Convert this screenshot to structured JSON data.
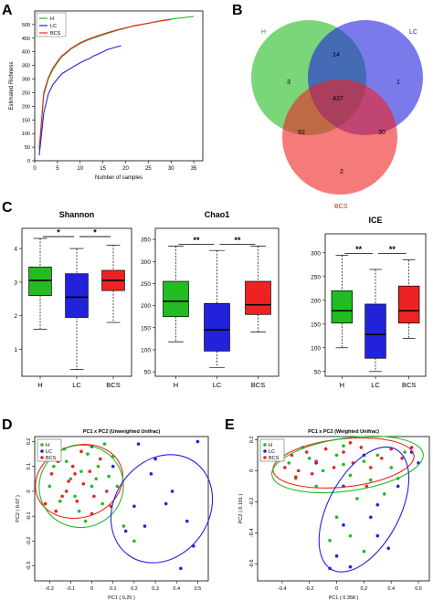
{
  "colors": {
    "H": "#22bb22",
    "LC": "#2222dd",
    "BCS": "#ee2222"
  },
  "panels": {
    "A": "A",
    "B": "B",
    "C": "C",
    "D": "D",
    "E": "E"
  },
  "chart_data": [
    {
      "panel": "A",
      "type": "line",
      "xlabel": "Number of samples",
      "ylabel": "Estimated Richness",
      "xlim": [
        0,
        37
      ],
      "ylim": [
        0,
        550
      ],
      "xticks": [
        0,
        5,
        10,
        15,
        20,
        25,
        30,
        35
      ],
      "yticks": [
        0,
        50,
        100,
        150,
        200,
        250,
        300,
        350,
        400,
        450,
        500
      ],
      "legend_position": "top-left",
      "series": [
        {
          "name": "H",
          "x": [
            1,
            2,
            3,
            4,
            5,
            6,
            8,
            10,
            12,
            15,
            18,
            20,
            22,
            25,
            28,
            30,
            33,
            35
          ],
          "y": [
            40,
            240,
            300,
            335,
            360,
            382,
            410,
            430,
            445,
            462,
            478,
            487,
            495,
            505,
            515,
            520,
            526,
            530
          ]
        },
        {
          "name": "LC",
          "x": [
            1,
            2,
            3,
            4,
            5,
            6,
            7,
            8,
            9,
            10,
            11,
            12,
            13,
            14,
            15,
            16,
            17,
            18,
            19
          ],
          "y": [
            20,
            175,
            245,
            280,
            300,
            320,
            330,
            340,
            350,
            360,
            368,
            375,
            385,
            392,
            400,
            408,
            413,
            418,
            422
          ]
        },
        {
          "name": "BCS",
          "x": [
            1,
            2,
            3,
            4,
            5,
            6,
            8,
            10,
            12,
            15,
            18,
            20,
            22,
            25,
            28,
            30
          ],
          "y": [
            45,
            250,
            305,
            340,
            365,
            385,
            413,
            433,
            448,
            465,
            480,
            488,
            496,
            505,
            514,
            518
          ]
        }
      ]
    },
    {
      "panel": "B",
      "type": "venn",
      "sets": [
        "H",
        "LC",
        "BCS"
      ],
      "regions": [
        {
          "sets": [
            "H"
          ],
          "value": 3
        },
        {
          "sets": [
            "LC"
          ],
          "value": 1
        },
        {
          "sets": [
            "BCS"
          ],
          "value": 2
        },
        {
          "sets": [
            "H",
            "LC"
          ],
          "value": 14
        },
        {
          "sets": [
            "H",
            "BCS"
          ],
          "value": 92
        },
        {
          "sets": [
            "LC",
            "BCS"
          ],
          "value": 30
        },
        {
          "sets": [
            "H",
            "LC",
            "BCS"
          ],
          "value": 437
        }
      ]
    },
    {
      "panel": "C",
      "type": "box",
      "title": "Shannon",
      "categories": [
        "H",
        "LC",
        "BCS"
      ],
      "ylim": [
        0.2,
        4.6
      ],
      "yticks": [
        1,
        2,
        3,
        4
      ],
      "boxes": [
        {
          "min": 1.6,
          "q1": 2.6,
          "median": 3.05,
          "q3": 3.45,
          "max": 4.3
        },
        {
          "min": 0.4,
          "q1": 1.95,
          "median": 2.55,
          "q3": 3.25,
          "max": 4.0
        },
        {
          "min": 1.8,
          "q1": 2.75,
          "median": 3.05,
          "q3": 3.35,
          "max": 4.1
        }
      ],
      "significance": [
        {
          "from": 0,
          "to": 1,
          "label": "*"
        },
        {
          "from": 1,
          "to": 2,
          "label": "*"
        }
      ]
    },
    {
      "panel": "C",
      "type": "box",
      "title": "Chao1",
      "categories": [
        "H",
        "LC",
        "BCS"
      ],
      "ylim": [
        40,
        375
      ],
      "yticks": [
        50,
        100,
        150,
        200,
        250,
        300,
        350
      ],
      "boxes": [
        {
          "min": 118,
          "q1": 175,
          "median": 210,
          "q3": 255,
          "max": 335
        },
        {
          "min": 60,
          "q1": 97,
          "median": 145,
          "q3": 205,
          "max": 325
        },
        {
          "min": 140,
          "q1": 180,
          "median": 202,
          "q3": 255,
          "max": 335
        }
      ],
      "significance": [
        {
          "from": 0,
          "to": 1,
          "label": "**"
        },
        {
          "from": 1,
          "to": 2,
          "label": "**"
        }
      ]
    },
    {
      "panel": "C",
      "type": "box",
      "title": "ICE",
      "categories": [
        "H",
        "LC",
        "BCS"
      ],
      "ylim": [
        40,
        340
      ],
      "yticks": [
        50,
        100,
        150,
        200,
        250,
        300
      ],
      "boxes": [
        {
          "min": 100,
          "q1": 152,
          "median": 178,
          "q3": 220,
          "max": 295
        },
        {
          "min": 50,
          "q1": 78,
          "median": 128,
          "q3": 192,
          "max": 265
        },
        {
          "min": 120,
          "q1": 152,
          "median": 178,
          "q3": 230,
          "max": 285
        }
      ],
      "significance": [
        {
          "from": 0,
          "to": 1,
          "label": "**"
        },
        {
          "from": 1,
          "to": 2,
          "label": "**"
        }
      ]
    },
    {
      "panel": "D",
      "type": "scatter",
      "title": "PC1 x PC2 (Unweighted Unifrac)",
      "xlabel": "PC1 ( 0.25 )",
      "ylabel": "PC2 ( 0.07 )",
      "xlim": [
        -0.27,
        0.55
      ],
      "ylim": [
        -0.36,
        0.22
      ],
      "xticks": [
        -0.2,
        -0.1,
        0.0,
        0.1,
        0.2,
        0.3,
        0.4,
        0.5
      ],
      "yticks": [
        -0.3,
        -0.2,
        -0.1,
        0.0,
        0.1,
        0.2
      ],
      "legend_position": "top-left",
      "series": [
        {
          "name": "H",
          "points": [
            [
              -0.18,
              0.1
            ],
            [
              -0.15,
              -0.04
            ],
            [
              -0.12,
              0.12
            ],
            [
              -0.1,
              0.05
            ],
            [
              -0.08,
              -0.02
            ],
            [
              -0.05,
              0.08
            ],
            [
              -0.02,
              0.15
            ],
            [
              0.0,
              0.02
            ],
            [
              0.03,
              0.1
            ],
            [
              0.05,
              -0.05
            ],
            [
              0.08,
              0.06
            ],
            [
              0.1,
              0.14
            ],
            [
              -0.2,
              0.02
            ],
            [
              -0.06,
              -0.08
            ],
            [
              0.12,
              0.02
            ],
            [
              0.15,
              -0.14
            ],
            [
              -0.13,
              0.17
            ],
            [
              0.06,
              0.19
            ],
            [
              0.2,
              -0.2
            ],
            [
              -0.03,
              -0.12
            ],
            [
              0.02,
              0.05
            ]
          ]
        },
        {
          "name": "LC",
          "points": [
            [
              0.22,
              0.19
            ],
            [
              0.28,
              0.07
            ],
            [
              0.38,
              0.0
            ],
            [
              0.45,
              -0.12
            ],
            [
              0.2,
              -0.06
            ],
            [
              0.25,
              -0.14
            ],
            [
              0.48,
              -0.22
            ],
            [
              0.42,
              -0.31
            ],
            [
              0.16,
              -0.16
            ],
            [
              0.3,
              0.13
            ],
            [
              0.0,
              0.18
            ],
            [
              0.35,
              -0.05
            ],
            [
              0.1,
              0.1
            ],
            [
              0.5,
              0.2
            ]
          ]
        },
        {
          "name": "BCS",
          "points": [
            [
              -0.22,
              -0.05
            ],
            [
              -0.19,
              0.07
            ],
            [
              -0.16,
              0.12
            ],
            [
              -0.14,
              -0.02
            ],
            [
              -0.11,
              0.04
            ],
            [
              -0.09,
              0.1
            ],
            [
              -0.07,
              -0.04
            ],
            [
              -0.04,
              0.03
            ],
            [
              -0.01,
              0.08
            ],
            [
              0.01,
              -0.02
            ],
            [
              0.04,
              0.13
            ],
            [
              0.07,
              0.0
            ],
            [
              -0.17,
              -0.08
            ],
            [
              -0.12,
              0.0
            ],
            [
              -0.05,
              0.16
            ],
            [
              0.09,
              -0.06
            ],
            [
              -0.2,
              0.13
            ],
            [
              0.0,
              -0.09
            ],
            [
              -0.08,
              0.07
            ]
          ]
        }
      ],
      "ellipses": [
        {
          "group": "BCS",
          "cx": -0.06,
          "cy": 0.04,
          "rx": 0.21,
          "ry": 0.145,
          "angle": -18
        },
        {
          "group": "H",
          "cx": -0.05,
          "cy": 0.02,
          "rx": 0.2,
          "ry": 0.165,
          "angle": -20
        },
        {
          "group": "LC",
          "cx": 0.33,
          "cy": -0.07,
          "rx": 0.27,
          "ry": 0.19,
          "angle": -55
        }
      ]
    },
    {
      "panel": "E",
      "type": "scatter",
      "title": "PC1 x PC2 (Weighted Unifrac)",
      "xlabel": "PC1 ( 0.358 )",
      "ylabel": "PC2 ( 0.191 )",
      "xlim": [
        -0.58,
        0.68
      ],
      "ylim": [
        -0.71,
        0.22
      ],
      "xticks": [
        -0.4,
        -0.2,
        0.0,
        0.2,
        0.4,
        0.6
      ],
      "yticks": [
        -0.6,
        -0.4,
        -0.2,
        0.0,
        0.2
      ],
      "legend_position": "top-left",
      "series": [
        {
          "name": "H",
          "points": [
            [
              -0.35,
              0.05
            ],
            [
              -0.3,
              -0.05
            ],
            [
              -0.2,
              0.08
            ],
            [
              -0.1,
              0.0
            ],
            [
              0.0,
              0.1
            ],
            [
              0.1,
              -0.03
            ],
            [
              0.2,
              0.06
            ],
            [
              0.3,
              0.1
            ],
            [
              0.4,
              0.02
            ],
            [
              0.5,
              0.12
            ],
            [
              -0.25,
              0.15
            ],
            [
              0.05,
              0.16
            ],
            [
              0.25,
              -0.06
            ],
            [
              -0.15,
              -0.1
            ],
            [
              0.15,
              -0.18
            ],
            [
              0.35,
              -0.15
            ],
            [
              0.0,
              -0.3
            ],
            [
              -0.05,
              -0.45
            ],
            [
              0.1,
              -0.42
            ],
            [
              0.2,
              -0.52
            ],
            [
              0.05,
              0.04
            ],
            [
              0.45,
              -0.05
            ]
          ]
        },
        {
          "name": "LC",
          "points": [
            [
              0.55,
              0.12
            ],
            [
              0.6,
              0.05
            ],
            [
              0.45,
              -0.1
            ],
            [
              0.3,
              -0.22
            ],
            [
              0.05,
              -0.35
            ],
            [
              0.0,
              -0.55
            ],
            [
              -0.05,
              -0.63
            ],
            [
              0.1,
              -0.62
            ],
            [
              0.25,
              -0.3
            ],
            [
              0.38,
              -0.5
            ],
            [
              0.2,
              0.1
            ],
            [
              0.05,
              -0.1
            ],
            [
              -0.15,
              0.05
            ],
            [
              0.3,
              -0.42
            ]
          ]
        },
        {
          "name": "BCS",
          "points": [
            [
              -0.4,
              0.08
            ],
            [
              -0.33,
              0.1
            ],
            [
              -0.28,
              0.0
            ],
            [
              -0.22,
              0.12
            ],
            [
              -0.15,
              0.06
            ],
            [
              -0.08,
              0.14
            ],
            [
              -0.02,
              0.02
            ],
            [
              0.05,
              0.12
            ],
            [
              0.12,
              0.05
            ],
            [
              0.18,
              0.15
            ],
            [
              0.25,
              0.02
            ],
            [
              0.33,
              0.08
            ],
            [
              0.4,
              0.14
            ],
            [
              -0.3,
              -0.04
            ],
            [
              0.1,
              0.18
            ],
            [
              -0.18,
              -0.02
            ],
            [
              0.22,
              -0.1
            ],
            [
              -0.38,
              0.02
            ],
            [
              0.55,
              0.15
            ],
            [
              0.48,
              0.08
            ]
          ]
        }
      ],
      "ellipses": [
        {
          "group": "BCS",
          "cx": 0.05,
          "cy": 0.05,
          "rx": 0.52,
          "ry": 0.155,
          "angle": -6
        },
        {
          "group": "H",
          "cx": 0.08,
          "cy": 0.04,
          "rx": 0.56,
          "ry": 0.17,
          "angle": -8
        },
        {
          "group": "LC",
          "cx": 0.2,
          "cy": -0.25,
          "rx": 0.5,
          "ry": 0.23,
          "angle": -62
        }
      ]
    }
  ]
}
